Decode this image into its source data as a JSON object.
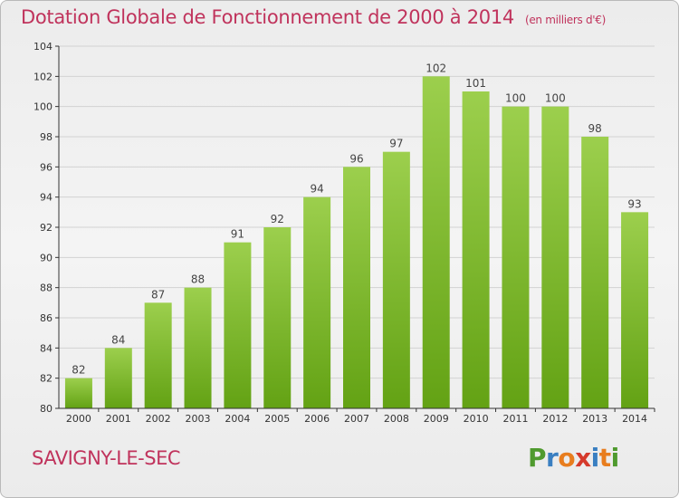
{
  "header": {
    "title": "Dotation Globale de Fonctionnement de 2000 à 2014",
    "unit": "(en milliers d'€)"
  },
  "footer": {
    "city": "SAVIGNY-LE-SEC",
    "brand_letters": [
      "P",
      "r",
      "o",
      "x",
      "i",
      "t",
      "i"
    ],
    "brand_colors": [
      "#4f9a2e",
      "#3a7fc1",
      "#e87d1e",
      "#d53a2c",
      "#3a7fc1",
      "#e87d1e",
      "#4f9a2e"
    ]
  },
  "colors": {
    "bar_light": "#9ccf4d",
    "bar_dark": "#63a214",
    "grid": "#d2d2d2",
    "axis": "#333333",
    "title": "#c0335c"
  },
  "chart_data": {
    "type": "bar",
    "categories": [
      "2000",
      "2001",
      "2002",
      "2003",
      "2004",
      "2005",
      "2006",
      "2007",
      "2008",
      "2009",
      "2010",
      "2011",
      "2012",
      "2013",
      "2014"
    ],
    "values": [
      82,
      84,
      87,
      88,
      91,
      92,
      94,
      96,
      97,
      102,
      101,
      100,
      100,
      98,
      93
    ],
    "title": "Dotation Globale de Fonctionnement de 2000 à 2014",
    "xlabel": "",
    "ylabel": "",
    "ylim": [
      80,
      104
    ],
    "yticks": [
      80,
      82,
      84,
      86,
      88,
      90,
      92,
      94,
      96,
      98,
      100,
      102,
      104
    ],
    "grid": true,
    "data_labels": true
  }
}
